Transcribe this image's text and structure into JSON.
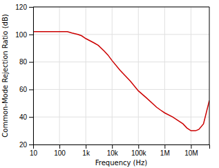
{
  "chart_data": {
    "type": "line",
    "xlabel": "Frequency (Hz)",
    "ylabel": "Common-Mode Rejection Ratio (dB)",
    "x": [
      10,
      20,
      30,
      50,
      70,
      100,
      200,
      300,
      500,
      700,
      1000,
      2000,
      3000,
      5000,
      7000,
      10000,
      20000,
      50000,
      100000,
      200000,
      500000,
      700000,
      1000000,
      2000000,
      5000000,
      7000000,
      10000000,
      15000000,
      20000000,
      30000000,
      50000000
    ],
    "series": [
      {
        "color": "#cc0000",
        "values": [
          102,
          102,
          102,
          102,
          102,
          102,
          102,
          101,
          100,
          99,
          97,
          94,
          92,
          88,
          85,
          81,
          74,
          66,
          59,
          54,
          47,
          45,
          43,
          40,
          35,
          32,
          30,
          30,
          31,
          35,
          52
        ]
      }
    ],
    "xlim": [
      10,
      50000000
    ],
    "ylim": [
      20,
      120
    ],
    "xticks": [
      10,
      100,
      {
        "value": 1000,
        "label": "1k"
      },
      {
        "value": 10000,
        "label": "10k"
      },
      {
        "value": 100000,
        "label": "100k"
      },
      {
        "value": 1000000,
        "label": "1M"
      },
      {
        "value": 10000000,
        "label": "10M"
      }
    ],
    "yticks": [
      20,
      40,
      60,
      80,
      100,
      120
    ],
    "log": "x",
    "grid": true
  }
}
